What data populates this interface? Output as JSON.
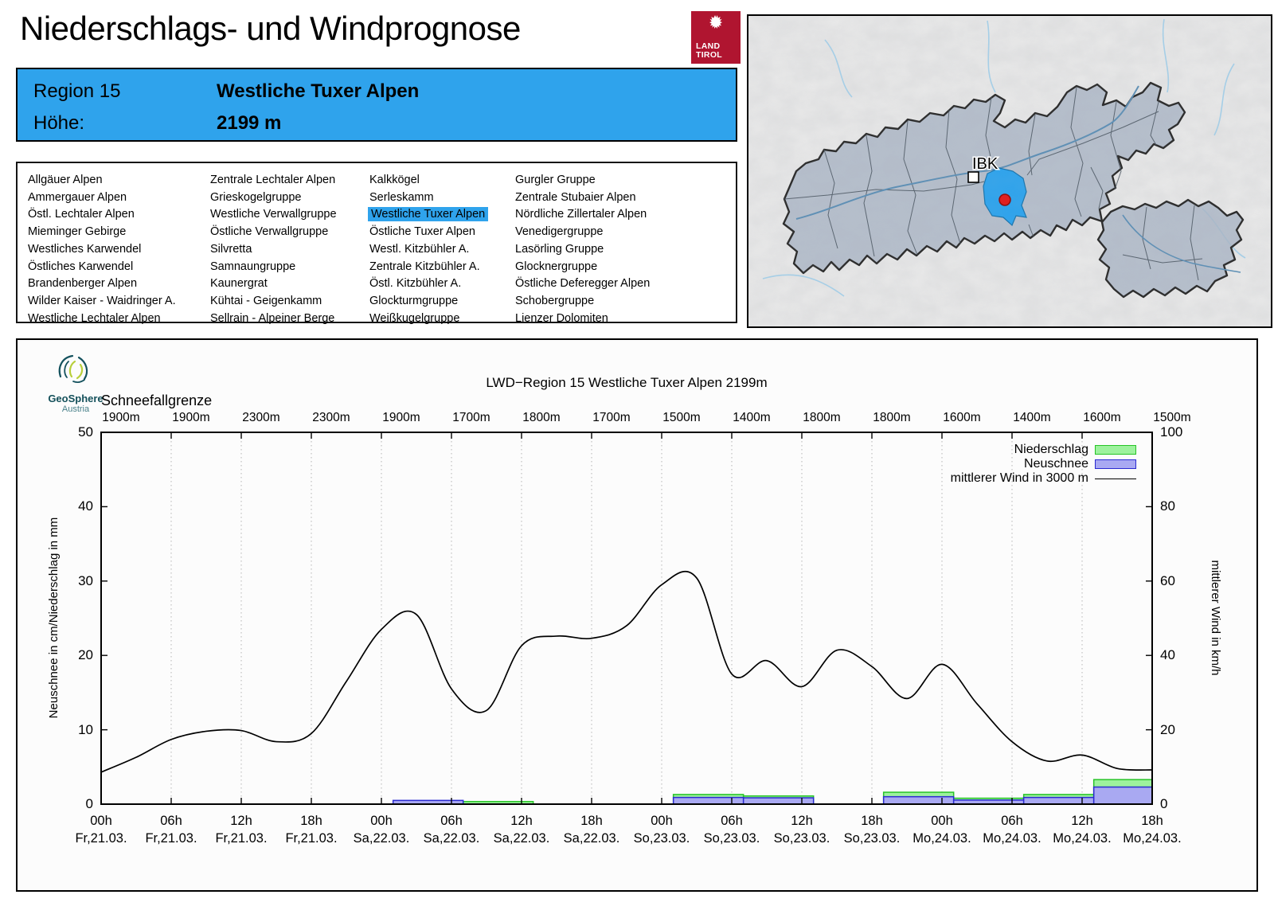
{
  "header": {
    "title": "Niederschlags- und Windprognose",
    "logo": {
      "line1": "LAND",
      "line2": "TIROL",
      "color": "#b01530"
    }
  },
  "region_box": {
    "region_label": "Region 15",
    "region_name": "Westliche Tuxer Alpen",
    "altitude_label": "Höhe:",
    "altitude_value": "2199 m"
  },
  "region_list": {
    "selected": "Westliche Tuxer Alpen",
    "columns": [
      [
        "Allgäuer Alpen",
        "Ammergauer Alpen",
        "Östl. Lechtaler Alpen",
        "Mieminger Gebirge",
        "Westliches Karwendel",
        "Östliches Karwendel",
        "Brandenberger Alpen",
        "Wilder Kaiser - Waidringer A.",
        "Westliche Lechtaler Alpen"
      ],
      [
        "Zentrale Lechtaler Alpen",
        "Grieskogelgruppe",
        "Westliche Verwallgruppe",
        "Östliche Verwallgruppe",
        "Silvretta",
        "Samnaungruppe",
        "Kaunergrat",
        "Kühtai - Geigenkamm",
        "Sellrain - Alpeiner Berge"
      ],
      [
        "Kalkkögel",
        "Serleskamm",
        "Westliche Tuxer Alpen",
        "Östliche Tuxer Alpen",
        "Westl. Kitzbühler A.",
        "Zentrale Kitzbühler A.",
        "Östl. Kitzbühler A.",
        "Glockturmgruppe",
        "Weißkugelgruppe"
      ],
      [
        "Gurgler Gruppe",
        "Zentrale Stubaier Alpen",
        "Nördliche Zillertaler Alpen",
        "Venedigergruppe",
        "Lasörling Gruppe",
        "Glocknergruppe",
        "Östliche Deferegger Alpen",
        "Schobergruppe",
        "Lienzer Dolomiten"
      ]
    ]
  },
  "map": {
    "city_label": "IBK"
  },
  "chart": {
    "provider": {
      "name": "GeoSphere",
      "sub": "Austria"
    },
    "title": "LWD−Region 15 Westliche Tuxer Alpen 2199m",
    "snowline_label": "Schneefallgrenze",
    "ylabel_left": "Neuschnee in cm/Niederschlag in mm",
    "ylabel_right": "mittlerer Wind in km/h",
    "legend": [
      {
        "label": "Niederschlag",
        "swatch": "precip"
      },
      {
        "label": "Neuschnee",
        "swatch": "snow"
      },
      {
        "label": "mittlerer Wind in 3000 m",
        "swatch": "line"
      }
    ]
  },
  "colors": {
    "accent_blue": "#2fa3ec",
    "precip_fill": "#9df29d",
    "precip_border": "#27c427",
    "snow_fill": "#a9a9f2",
    "snow_border": "#2a2ad0",
    "wind_line": "#000000",
    "grid": "#b5b5b5",
    "map_region_fill": "#a9b5c5",
    "map_selected_fill": "#2fa3ec",
    "marker_red": "#e02020"
  },
  "chart_data": {
    "type": "composite",
    "title": "LWD−Region 15 Westliche Tuxer Alpen 2199m",
    "x_axis": {
      "unit": "hours",
      "range_h": [
        0,
        90
      ],
      "tick_step_h": 6,
      "ticks": [
        {
          "time": "00h",
          "date": "Fr,21.03."
        },
        {
          "time": "06h",
          "date": "Fr,21.03."
        },
        {
          "time": "12h",
          "date": "Fr,21.03."
        },
        {
          "time": "18h",
          "date": "Fr,21.03."
        },
        {
          "time": "00h",
          "date": "Sa,22.03."
        },
        {
          "time": "06h",
          "date": "Sa,22.03."
        },
        {
          "time": "12h",
          "date": "Sa,22.03."
        },
        {
          "time": "18h",
          "date": "Sa,22.03."
        },
        {
          "time": "00h",
          "date": "So,23.03."
        },
        {
          "time": "06h",
          "date": "So,23.03."
        },
        {
          "time": "12h",
          "date": "So,23.03."
        },
        {
          "time": "18h",
          "date": "So,23.03."
        },
        {
          "time": "00h",
          "date": "Mo,24.03."
        },
        {
          "time": "06h",
          "date": "Mo,24.03."
        },
        {
          "time": "12h",
          "date": "Mo,24.03."
        },
        {
          "time": "18h",
          "date": "Mo,24.03."
        }
      ]
    },
    "y_axis_left": {
      "label": "Neuschnee in cm/Niederschlag in mm",
      "range": [
        0,
        50
      ],
      "ticks": [
        0,
        10,
        20,
        30,
        40,
        50
      ]
    },
    "y_axis_right": {
      "label": "mittlerer Wind in km/h",
      "range": [
        0,
        100
      ],
      "ticks": [
        0,
        20,
        40,
        60,
        80,
        100
      ]
    },
    "snowline_label": "Schneefallgrenze",
    "snowline_values": [
      "1900m",
      "1900m",
      "2300m",
      "2300m",
      "1900m",
      "1700m",
      "1800m",
      "1700m",
      "1500m",
      "1400m",
      "1800m",
      "1800m",
      "1600m",
      "1400m",
      "1600m",
      "1500m"
    ],
    "series": [
      {
        "name": "Niederschlag",
        "type": "bar",
        "unit": "mm",
        "axis": "left",
        "bars": [
          {
            "start_h": 31,
            "end_h": 37,
            "value": 0.35
          },
          {
            "start_h": 49,
            "end_h": 55,
            "value": 1.3
          },
          {
            "start_h": 55,
            "end_h": 61,
            "value": 1.1
          },
          {
            "start_h": 67,
            "end_h": 73,
            "value": 1.6
          },
          {
            "start_h": 73,
            "end_h": 79,
            "value": 0.8
          },
          {
            "start_h": 79,
            "end_h": 85,
            "value": 1.3
          },
          {
            "start_h": 85,
            "end_h": 90,
            "value": 3.3
          }
        ]
      },
      {
        "name": "Neuschnee",
        "type": "bar",
        "unit": "cm",
        "axis": "left",
        "bars": [
          {
            "start_h": 25,
            "end_h": 31,
            "value": 0.5
          },
          {
            "start_h": 49,
            "end_h": 55,
            "value": 0.9
          },
          {
            "start_h": 55,
            "end_h": 61,
            "value": 0.85
          },
          {
            "start_h": 67,
            "end_h": 73,
            "value": 1.0
          },
          {
            "start_h": 73,
            "end_h": 79,
            "value": 0.55
          },
          {
            "start_h": 79,
            "end_h": 85,
            "value": 0.9
          },
          {
            "start_h": 85,
            "end_h": 90,
            "value": 2.3
          }
        ]
      },
      {
        "name": "mittlerer Wind in 3000 m",
        "type": "line",
        "unit": "km/h",
        "axis": "right",
        "x_start_h": 0,
        "x_step_h": 3,
        "values": [
          8.6,
          12.6,
          17.4,
          19.6,
          19.8,
          16.8,
          19.0,
          33,
          47,
          51,
          31,
          25.2,
          42.6,
          45.2,
          44.6,
          48,
          59,
          60.8,
          35,
          38.6,
          31.6,
          41.4,
          37,
          28.4,
          37.6,
          27,
          16.8,
          11.6,
          13.2,
          9.6,
          9.2
        ]
      }
    ]
  }
}
